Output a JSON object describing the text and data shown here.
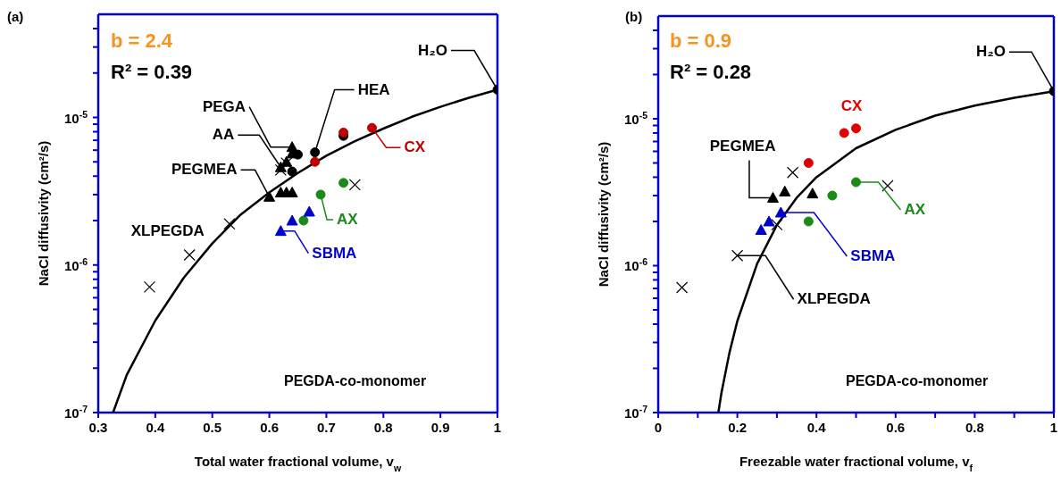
{
  "chart_data": [
    {
      "type": "scatter",
      "xlabel": "Total water fractional volume, v$_{w}$",
      "ylabel": "NaCl diffusivity (cm²/s)",
      "log": "y",
      "grid": false,
      "annotations": [
        "(a)",
        "b = 2.4",
        "R² = 0.39",
        "PEGDA-co-monomer"
      ],
      "xlim": [
        0.3,
        1
      ],
      "xticks": [
        {
          "value": 0.3,
          "label": "0.3"
        },
        {
          "value": 0.4,
          "label": "0.4"
        },
        {
          "value": 0.5,
          "label": "0.5"
        },
        {
          "value": 0.6,
          "label": "0.6"
        },
        {
          "value": 0.7,
          "label": "0.7"
        },
        {
          "value": 0.8,
          "label": "0.8"
        },
        {
          "value": 0.9,
          "label": "0.9"
        },
        {
          "value": 1,
          "label": "1"
        }
      ],
      "ylim": [
        1e-07,
        5e-05
      ],
      "yticks": [
        {
          "value": 1e-07,
          "label": "10$^{-7}$"
        },
        {
          "value": 2e-07,
          "label": null
        },
        {
          "value": 3e-07,
          "label": null
        },
        {
          "value": 4e-07,
          "label": null
        },
        {
          "value": 5e-07,
          "label": null
        },
        {
          "value": 6e-07,
          "label": null
        },
        {
          "value": 7e-07,
          "label": null
        },
        {
          "value": 8e-07,
          "label": null
        },
        {
          "value": 9e-07,
          "label": null
        },
        {
          "value": 1e-06,
          "label": "10$^{-6}$"
        },
        {
          "value": 2e-06,
          "label": null
        },
        {
          "value": 3e-06,
          "label": null
        },
        {
          "value": 4e-06,
          "label": null
        },
        {
          "value": 5e-06,
          "label": null
        },
        {
          "value": 6e-06,
          "label": null
        },
        {
          "value": 7e-06,
          "label": null
        },
        {
          "value": 8e-06,
          "label": null
        },
        {
          "value": 9e-06,
          "label": null
        },
        {
          "value": 1e-05,
          "label": "10$^{-5}$"
        },
        {
          "value": 2e-05,
          "label": null
        },
        {
          "value": 3e-05,
          "label": null
        },
        {
          "value": 4e-05,
          "label": null
        }
      ],
      "series": [
        {
          "type": "line",
          "marker": "none",
          "color": "#000000",
          "x": [
            0.326,
            0.35,
            0.4,
            0.45,
            0.5,
            0.55,
            0.6,
            0.65,
            0.7,
            0.75,
            0.8,
            0.85,
            0.9,
            0.95,
            1
          ],
          "values": [
            1e-07,
            1.8e-07,
            4.2e-07,
            8.2e-07,
            1.4e-06,
            2.2e-06,
            3.1e-06,
            4.2e-06,
            5.5e-06,
            6.9e-06,
            8.4e-06,
            1.01e-05,
            1.18e-05,
            1.36e-05,
            1.54e-05
          ]
        },
        {
          "name": "XLPEGDA",
          "marker": "cross",
          "color": "#000000",
          "x": [
            0.39,
            0.46,
            0.53,
            0.62,
            0.63,
            0.75
          ],
          "values": [
            7.1e-07,
            1.17e-06,
            1.9e-06,
            4.4e-06,
            4.9e-06,
            3.5e-06
          ]
        },
        {
          "name": "PEGMEA",
          "marker": "triangle",
          "color": "#000000",
          "x": [
            0.6,
            0.62,
            0.63,
            0.64
          ],
          "values": [
            2.9e-06,
            3.1e-06,
            3.1e-06,
            3.1e-06
          ]
        },
        {
          "name": "AA",
          "marker": "triangle",
          "color": "#000000",
          "x": [
            0.62,
            0.63
          ],
          "values": [
            4.6e-06,
            5e-06
          ]
        },
        {
          "name": "PEGA",
          "marker": "triangle",
          "color": "#000000",
          "x": [
            0.64,
            0.64
          ],
          "values": [
            6.3e-06,
            5.7e-06
          ]
        },
        {
          "name": "HEA",
          "marker": "circle",
          "color": "#000000",
          "x": [
            0.64,
            0.65,
            0.68,
            0.73
          ],
          "values": [
            4.3e-06,
            5.6e-06,
            5.8e-06,
            7.5e-06
          ]
        },
        {
          "name": "CX",
          "marker": "circle",
          "color": "#c00000",
          "x": [
            0.68,
            0.73,
            0.78
          ],
          "values": [
            5e-06,
            7.9e-06,
            8.5e-06
          ]
        },
        {
          "name": "AX",
          "marker": "circle",
          "color": "#1a8a1a",
          "x": [
            0.66,
            0.69,
            0.73
          ],
          "values": [
            2e-06,
            3e-06,
            3.6e-06
          ]
        },
        {
          "name": "SBMA",
          "marker": "triangle",
          "color": "#0000cc",
          "x": [
            0.62,
            0.64,
            0.67
          ],
          "values": [
            1.7e-06,
            2e-06,
            2.3e-06
          ]
        },
        {
          "name": "H₂O",
          "marker": "circle",
          "color": "#000000",
          "x": [
            1
          ],
          "values": [
            1.54e-05
          ]
        }
      ]
    },
    {
      "type": "scatter",
      "xlabel": "Freezable water fractional volume, v$_{f}$",
      "ylabel": "NaCl diffusivity (cm²/s)",
      "log": "y",
      "grid": false,
      "annotations": [
        "(b)",
        "b = 0.9",
        "R² = 0.28",
        "PEGDA-co-monomer"
      ],
      "xlim": [
        0,
        1
      ],
      "xticks": [
        {
          "value": 0,
          "label": "0"
        },
        {
          "value": 0.1,
          "label": null
        },
        {
          "value": 0.2,
          "label": "0.2"
        },
        {
          "value": 0.3,
          "label": null
        },
        {
          "value": 0.4,
          "label": "0.4"
        },
        {
          "value": 0.5,
          "label": null
        },
        {
          "value": 0.6,
          "label": "0.6"
        },
        {
          "value": 0.7,
          "label": null
        },
        {
          "value": 0.8,
          "label": "0.8"
        },
        {
          "value": 0.9,
          "label": null
        },
        {
          "value": 1,
          "label": "1"
        }
      ],
      "ylim": [
        1e-07,
        5e-05
      ],
      "yticks": [
        {
          "value": 1e-07,
          "label": "10$^{-7}$"
        },
        {
          "value": 2e-07,
          "label": null
        },
        {
          "value": 3e-07,
          "label": null
        },
        {
          "value": 4e-07,
          "label": null
        },
        {
          "value": 5e-07,
          "label": null
        },
        {
          "value": 6e-07,
          "label": null
        },
        {
          "value": 7e-07,
          "label": null
        },
        {
          "value": 8e-07,
          "label": null
        },
        {
          "value": 9e-07,
          "label": null
        },
        {
          "value": 1e-06,
          "label": "10$^{-6}$"
        },
        {
          "value": 2e-06,
          "label": null
        },
        {
          "value": 3e-06,
          "label": null
        },
        {
          "value": 4e-06,
          "label": null
        },
        {
          "value": 5e-06,
          "label": null
        },
        {
          "value": 6e-06,
          "label": null
        },
        {
          "value": 7e-06,
          "label": null
        },
        {
          "value": 8e-06,
          "label": null
        },
        {
          "value": 9e-06,
          "label": null
        },
        {
          "value": 1e-05,
          "label": "10$^{-5}$"
        },
        {
          "value": 2e-05,
          "label": null
        },
        {
          "value": 3e-05,
          "label": null
        },
        {
          "value": 4e-05,
          "label": null
        }
      ],
      "series": [
        {
          "type": "line",
          "marker": "none",
          "color": "#000000",
          "x": [
            0.152,
            0.16,
            0.18,
            0.2,
            0.25,
            0.3,
            0.35,
            0.4,
            0.5,
            0.6,
            0.7,
            0.8,
            0.9,
            1
          ],
          "values": [
            1e-07,
            1.37e-07,
            2.55e-07,
            4.2e-07,
            1.03e-06,
            1.89e-06,
            2.9e-06,
            4e-06,
            6.3e-06,
            8.4e-06,
            1.05e-05,
            1.23e-05,
            1.39e-05,
            1.54e-05
          ]
        },
        {
          "name": "XLPEGDA",
          "marker": "cross",
          "color": "#000000",
          "x": [
            0.06,
            0.2,
            0.3,
            0.34,
            0.58
          ],
          "values": [
            7.1e-07,
            1.17e-06,
            1.9e-06,
            4.3e-06,
            3.5e-06
          ]
        },
        {
          "name": "PEGMEA",
          "marker": "triangle",
          "color": "#000000",
          "x": [
            0.29,
            0.32,
            0.39
          ],
          "values": [
            2.9e-06,
            3.2e-06,
            3.1e-06
          ]
        },
        {
          "name": "CX",
          "marker": "circle",
          "color": "#e00000",
          "x": [
            0.38,
            0.47,
            0.5
          ],
          "values": [
            5e-06,
            8e-06,
            8.6e-06
          ]
        },
        {
          "name": "AX",
          "marker": "circle",
          "color": "#1a8a1a",
          "x": [
            0.38,
            0.44,
            0.5
          ],
          "values": [
            2e-06,
            3e-06,
            3.7e-06
          ]
        },
        {
          "name": "SBMA",
          "marker": "triangle",
          "color": "#0000cc",
          "x": [
            0.26,
            0.28,
            0.31
          ],
          "values": [
            1.75e-06,
            2e-06,
            2.3e-06
          ]
        },
        {
          "name": "H₂O",
          "marker": "circle",
          "color": "#000000",
          "x": [
            1
          ],
          "values": [
            1.54e-05
          ]
        }
      ]
    }
  ]
}
